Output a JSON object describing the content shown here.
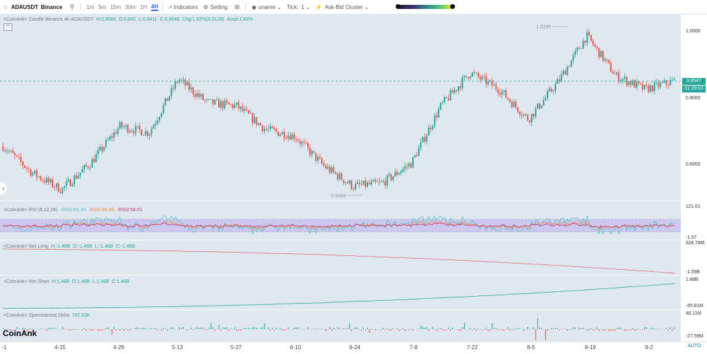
{
  "toolbar": {
    "symbol": "ADAUSDT",
    "exchange": "Binance",
    "timeframes": [
      "1m",
      "5m",
      "15m",
      "30m",
      "1H",
      "4H"
    ],
    "active_timeframe": "4H",
    "indicators_label": "Indicators",
    "setting_label": "Setting",
    "user_label": "uname",
    "tick_label": "Tick:",
    "tick_value": "1",
    "cluster_label": "Ask-Bid Cluster"
  },
  "main_pane": {
    "label": "<CoinAnk> Candle  Binance 4h ADAUSDT",
    "h": "H:0.8565",
    "o": "O:0.842",
    "l": "L:0.8411",
    "c": "C:0.8548",
    "chg": "Chg:1.52%(0.0128)",
    "ampl": "Ampl:1.83%",
    "high_marker": "1.0195",
    "low_marker": "0.5093",
    "last_price": "0.8547",
    "countdown": "01:29:03",
    "y_ticks": [
      "1.0000",
      "0.8000",
      "0.6000"
    ]
  },
  "rsi_pane": {
    "label": "<CoinAnk> RSI  (6,12,24)",
    "rsi1": "RSI1:61.30",
    "rsi2": "RSI2:68.49",
    "rsi3": "RSI3:58.01",
    "y_top": "121.61",
    "y_bottom": "-1.57"
  },
  "net_long_pane": {
    "label": "<CoinAnk> Net Long",
    "h": "H:-1.46B",
    "o": "O:-1.46B",
    "l": "L:-1.46B",
    "c": "C:-1.46B",
    "y_top": "328.78M",
    "y_bottom": "-1.59B"
  },
  "net_short_pane": {
    "label": "<CoinAnk> Net Short",
    "h": "H:1.46B",
    "o": "O:1.46B",
    "l": "L:1.46B",
    "c": "C:1.46B",
    "y_top": "1.88B",
    "y_bottom": "-55.81M"
  },
  "oi_pane": {
    "label": "<CoinAnk> OpenInterest Delta",
    "value": "787.53K",
    "y_top": "48.11M",
    "y_bottom": "-27.59M"
  },
  "x_axis": {
    "labels": [
      "-1",
      "4-15",
      "4-29",
      "5-13",
      "5-27",
      "6-10",
      "6-24",
      "7-8",
      "7-22",
      "8-5",
      "8-19",
      "9-2"
    ]
  },
  "watermark": "CoinAnk",
  "auto_label": "AUTO",
  "colors": {
    "up": "#26a69a",
    "down": "#ef5350",
    "background": "#dfe8ee",
    "rsi_band": "#c9c2ee",
    "accent": "#2962ff"
  },
  "chart_data": {
    "type": "candlestick",
    "symbol": "ADAUSDT",
    "interval": "4h",
    "close_trend": [
      [
        "4-1",
        0.66
      ],
      [
        "4-8",
        0.58
      ],
      [
        "4-15",
        0.53
      ],
      [
        "4-22",
        0.61
      ],
      [
        "4-29",
        0.72
      ],
      [
        "5-6",
        0.7
      ],
      [
        "5-13",
        0.86
      ],
      [
        "5-20",
        0.79
      ],
      [
        "5-27",
        0.78
      ],
      [
        "6-3",
        0.71
      ],
      [
        "6-10",
        0.69
      ],
      [
        "6-17",
        0.6
      ],
      [
        "6-24",
        0.54
      ],
      [
        "7-1",
        0.55
      ],
      [
        "7-8",
        0.61
      ],
      [
        "7-15",
        0.78
      ],
      [
        "7-22",
        0.88
      ],
      [
        "7-29",
        0.83
      ],
      [
        "8-5",
        0.74
      ],
      [
        "8-12",
        0.85
      ],
      [
        "8-19",
        0.99
      ],
      [
        "8-26",
        0.87
      ],
      [
        "9-2",
        0.83
      ],
      [
        "9-9",
        0.855
      ]
    ],
    "annotations": {
      "high": 1.0195,
      "low": 0.5093,
      "last": 0.8547
    },
    "price_axis_ticks": [
      1.0,
      0.8,
      0.6
    ],
    "rsi": {
      "rsi1": 61.3,
      "rsi2": 68.49,
      "rsi3": 58.01
    },
    "open_interest_delta": 787.53
  }
}
